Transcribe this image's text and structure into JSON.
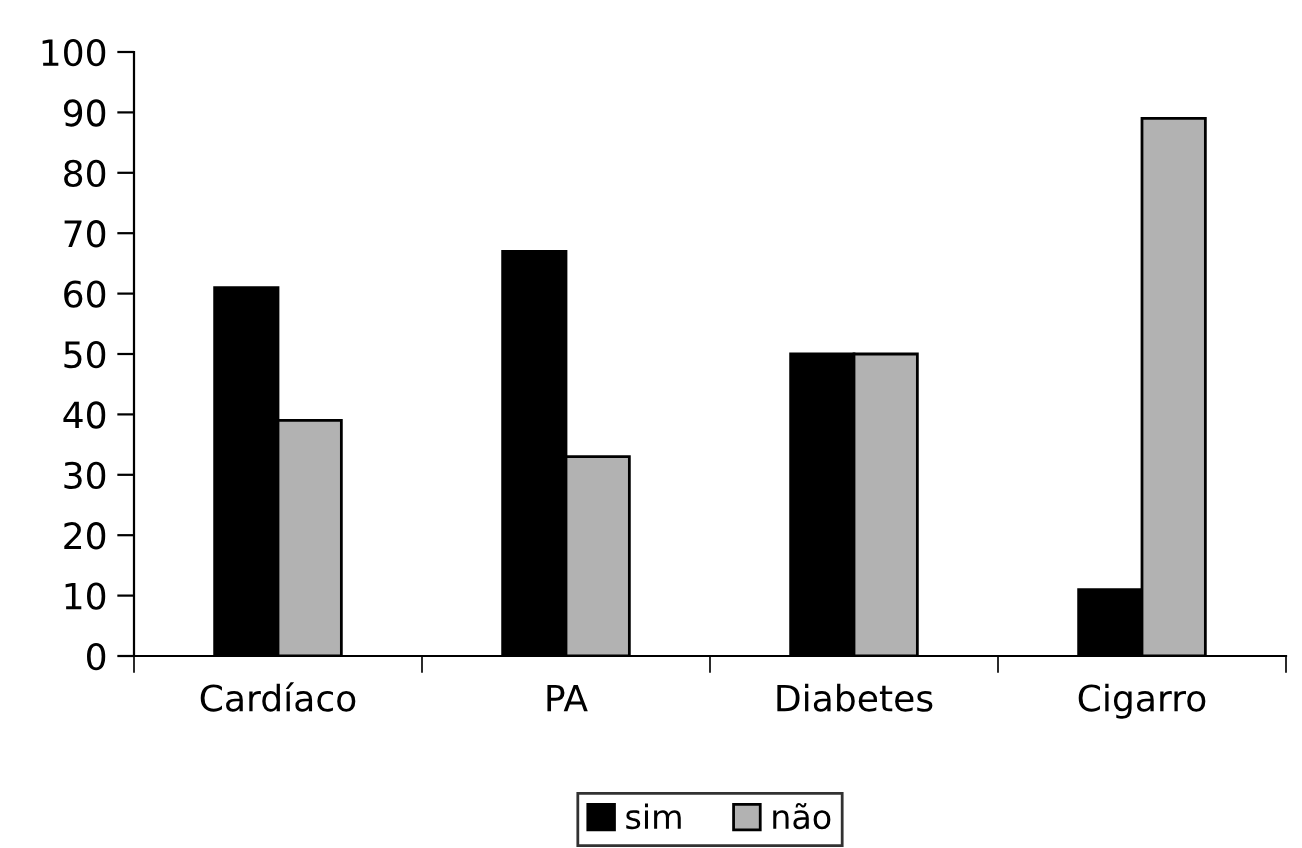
{
  "chart_data": {
    "type": "bar",
    "categories": [
      "Cardíaco",
      "PA",
      "Diabetes",
      "Cigarro"
    ],
    "series": [
      {
        "name": "sim",
        "color": "#000000",
        "values": [
          61,
          67,
          50,
          11
        ]
      },
      {
        "name": "não",
        "color": "#b2b2b2",
        "values": [
          39,
          33,
          50,
          89
        ]
      }
    ],
    "ylim": [
      0,
      100
    ],
    "yticks": [
      0,
      10,
      20,
      30,
      40,
      50,
      60,
      70,
      80,
      90,
      100
    ],
    "grid": false,
    "legend": "bottom"
  }
}
